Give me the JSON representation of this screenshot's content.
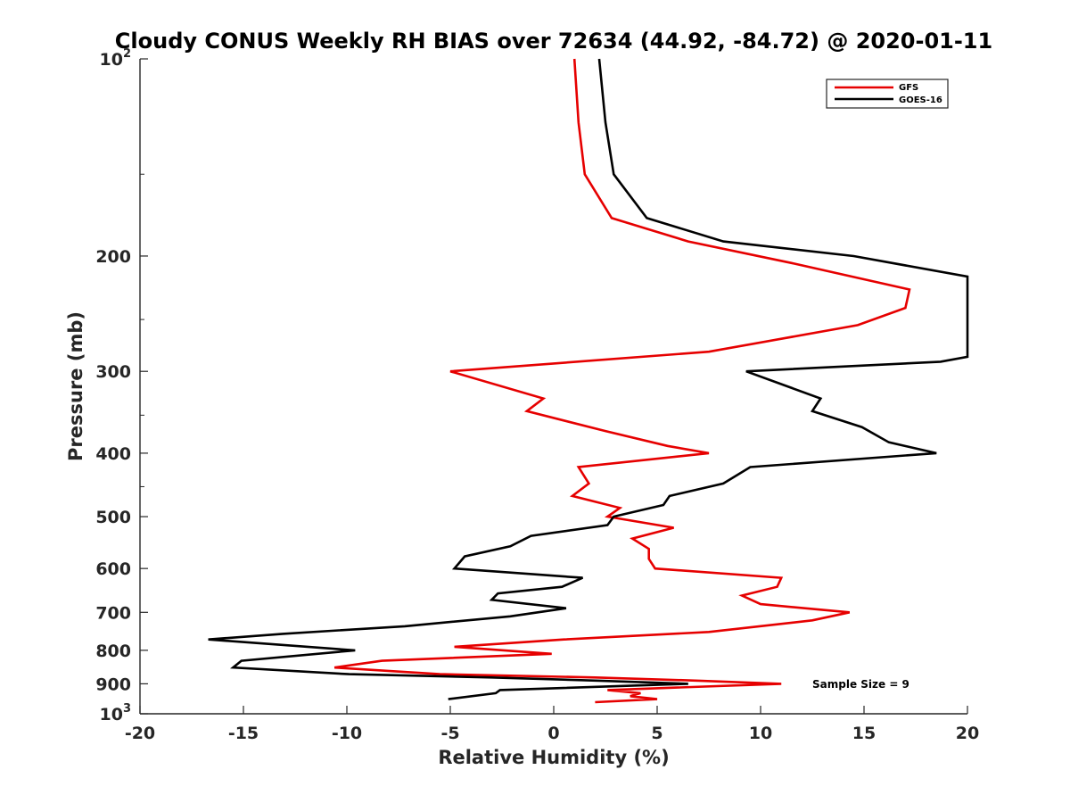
{
  "chart_data": {
    "type": "line",
    "title": "Cloudy CONUS Weekly RH BIAS over 72634 (44.92, -84.72) @ 2020-01-11",
    "xlabel": "Relative Humidity (%)",
    "ylabel": "Pressure (mb)",
    "xlim": [
      -20,
      20
    ],
    "ylim": [
      100,
      1000
    ],
    "y_scale": "log",
    "y_reversed": true,
    "grid": false,
    "legend_position": "top-right",
    "x_ticks": [
      -20,
      -15,
      -10,
      -5,
      0,
      5,
      10,
      15,
      20
    ],
    "y_ticks": [
      {
        "value": 100,
        "base": "10",
        "exp": "2"
      },
      {
        "value": 200,
        "label": "200"
      },
      {
        "value": 300,
        "label": "300"
      },
      {
        "value": 400,
        "label": "400"
      },
      {
        "value": 500,
        "label": "500"
      },
      {
        "value": 600,
        "label": "600"
      },
      {
        "value": 700,
        "label": "700"
      },
      {
        "value": 800,
        "label": "800"
      },
      {
        "value": 900,
        "label": "900"
      },
      {
        "value": 1000,
        "base": "10",
        "exp": "3"
      }
    ],
    "annotation": "Sample Size = 9",
    "series": [
      {
        "name": "GFS",
        "color": "#e60000",
        "points": [
          [
            1.0,
            100
          ],
          [
            1.2,
            125
          ],
          [
            1.5,
            150
          ],
          [
            2.8,
            175
          ],
          [
            6.5,
            190
          ],
          [
            11.5,
            205
          ],
          [
            17.2,
            225
          ],
          [
            17.0,
            240
          ],
          [
            14.7,
            255
          ],
          [
            7.5,
            280
          ],
          [
            -5.0,
            300
          ],
          [
            -0.5,
            330
          ],
          [
            -1.3,
            345
          ],
          [
            2.5,
            370
          ],
          [
            5.5,
            390
          ],
          [
            7.5,
            400
          ],
          [
            1.2,
            420
          ],
          [
            1.7,
            445
          ],
          [
            0.9,
            465
          ],
          [
            3.2,
            485
          ],
          [
            2.6,
            500
          ],
          [
            5.8,
            520
          ],
          [
            3.8,
            540
          ],
          [
            4.6,
            560
          ],
          [
            4.6,
            580
          ],
          [
            4.9,
            600
          ],
          [
            11.0,
            620
          ],
          [
            10.8,
            640
          ],
          [
            9.1,
            660
          ],
          [
            10.0,
            680
          ],
          [
            14.3,
            700
          ],
          [
            12.5,
            720
          ],
          [
            7.5,
            750
          ],
          [
            0.5,
            770
          ],
          [
            -4.8,
            790
          ],
          [
            -0.1,
            810
          ],
          [
            -8.3,
            830
          ],
          [
            -10.6,
            850
          ],
          [
            -5.5,
            870
          ],
          [
            2.0,
            880
          ],
          [
            7.0,
            890
          ],
          [
            11.0,
            900
          ],
          [
            2.6,
            920
          ],
          [
            4.2,
            930
          ],
          [
            3.7,
            940
          ],
          [
            5.0,
            950
          ],
          [
            2.0,
            960
          ]
        ]
      },
      {
        "name": "GOES-16",
        "color": "#000000",
        "points": [
          [
            2.2,
            100
          ],
          [
            2.5,
            125
          ],
          [
            2.9,
            150
          ],
          [
            4.5,
            175
          ],
          [
            8.2,
            190
          ],
          [
            14.5,
            200
          ],
          [
            20.0,
            215
          ],
          [
            20.0,
            285
          ],
          [
            18.7,
            290
          ],
          [
            9.3,
            300
          ],
          [
            12.9,
            330
          ],
          [
            12.5,
            345
          ],
          [
            14.9,
            365
          ],
          [
            16.2,
            385
          ],
          [
            18.5,
            400
          ],
          [
            9.5,
            420
          ],
          [
            8.2,
            445
          ],
          [
            5.6,
            465
          ],
          [
            5.3,
            480
          ],
          [
            2.9,
            500
          ],
          [
            2.6,
            515
          ],
          [
            -1.1,
            535
          ],
          [
            -2.1,
            555
          ],
          [
            -4.3,
            575
          ],
          [
            -4.8,
            600
          ],
          [
            1.4,
            620
          ],
          [
            0.4,
            640
          ],
          [
            -2.7,
            655
          ],
          [
            -3.0,
            670
          ],
          [
            0.6,
            690
          ],
          [
            -2.1,
            710
          ],
          [
            -7.2,
            735
          ],
          [
            -13.1,
            755
          ],
          [
            -16.7,
            770
          ],
          [
            -9.6,
            800
          ],
          [
            -15.1,
            830
          ],
          [
            -15.5,
            850
          ],
          [
            -9.9,
            870
          ],
          [
            -3.0,
            880
          ],
          [
            2.2,
            890
          ],
          [
            6.5,
            900
          ],
          [
            -2.6,
            920
          ],
          [
            -2.8,
            930
          ],
          [
            -5.1,
            950
          ]
        ]
      }
    ]
  }
}
